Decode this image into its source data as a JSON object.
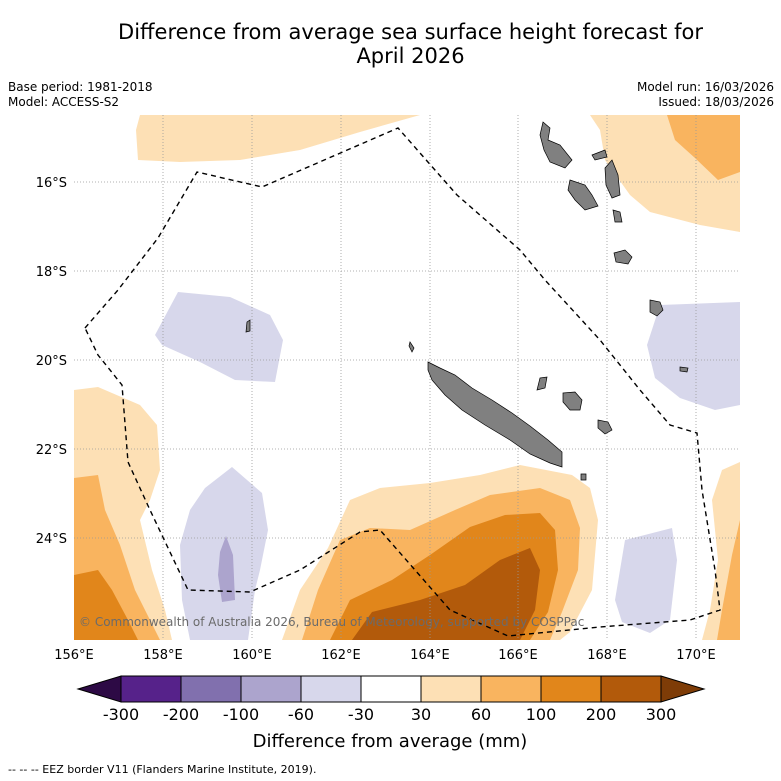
{
  "title": {
    "line1": "Difference from average sea surface height forecast for",
    "line2": "April 2026"
  },
  "meta": {
    "base_period": "Base period: 1981-2018",
    "model": "Model: ACCESS-S2",
    "model_run": "Model run: 16/03/2026",
    "issued": "Issued: 18/03/2026"
  },
  "axes": {
    "lat_labels": [
      "16°S",
      "18°S",
      "20°S",
      "22°S",
      "24°S"
    ],
    "lon_labels": [
      "156°E",
      "158°E",
      "160°E",
      "162°E",
      "164°E",
      "166°E",
      "168°E",
      "170°E"
    ]
  },
  "copyright": "© Commonwealth of Australia 2026, Bureau of Meteorology, supported by COSPPac",
  "colorbar": {
    "title": "Difference from average (mm)",
    "ticks": [
      "-300",
      "-200",
      "-100",
      "-60",
      "-30",
      "30",
      "60",
      "100",
      "200",
      "300"
    ],
    "colors": {
      "under": "#2d0a45",
      "bins": [
        "#56228a",
        "#8170ae",
        "#aca4cd",
        "#d7d7eb",
        "#ffffff",
        "#fde0b5",
        "#f9b45f",
        "#e1861b",
        "#b25a0b"
      ],
      "over": "#7e3c07"
    }
  },
  "legend_footer": "--  --  -- EEZ border V11 (Flanders Marine Institute, 2019).",
  "colors": {
    "land": "#808080",
    "grid": "#999999",
    "eez": "#000000"
  }
}
